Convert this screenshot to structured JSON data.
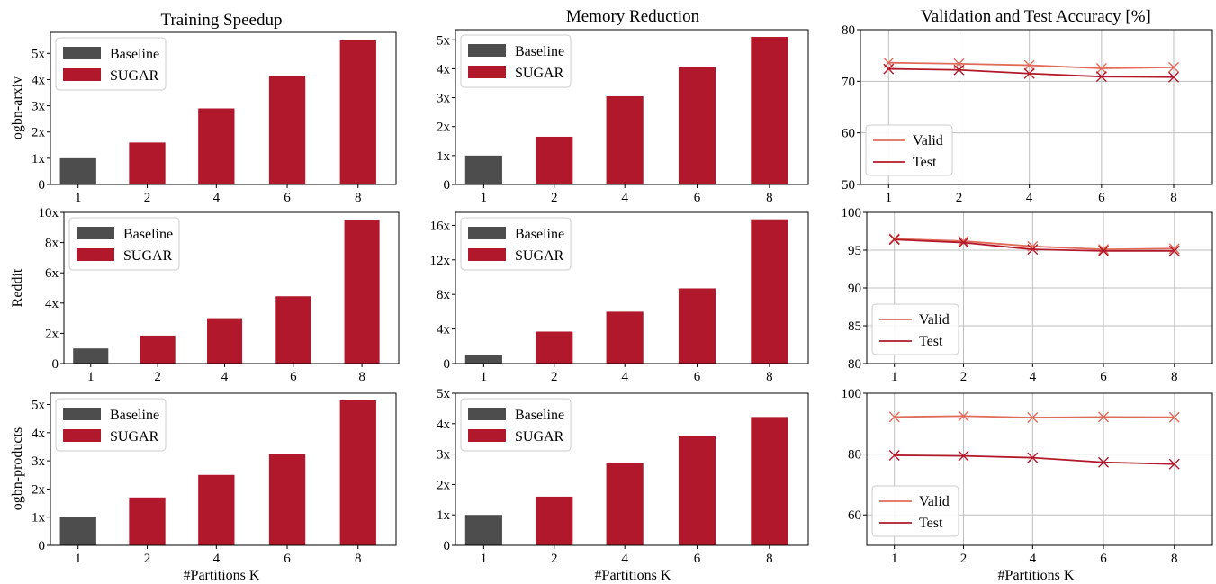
{
  "figure": {
    "column_titles": [
      "Training Speedup",
      "Memory Reduction",
      "Validation and Test Accuracy [%]"
    ],
    "row_labels": [
      "ogbn-arxiv",
      "Reddit",
      "ogbn-products"
    ],
    "xlabel": "#Partitions K",
    "colors": {
      "baseline": "#4d4d4d",
      "sugar": "#b2182b",
      "valid": "#e06b5a",
      "test": "#b2182b",
      "grid": "#bfbfbf"
    }
  },
  "chart_data": [
    {
      "id": "speedup-arxiv",
      "type": "bar",
      "categories": [
        "1",
        "2",
        "4",
        "6",
        "8"
      ],
      "series": [
        {
          "name": "Baseline",
          "values": [
            1.0,
            null,
            null,
            null,
            null
          ]
        },
        {
          "name": "SUGAR",
          "values": [
            null,
            1.6,
            2.9,
            4.15,
            5.5
          ]
        }
      ],
      "ylim": [
        0,
        5.8
      ],
      "yticks": [
        0,
        1,
        2,
        3,
        4,
        5
      ],
      "yticklabels": [
        "0",
        "1x",
        "2x",
        "3x",
        "4x",
        "5x"
      ],
      "legend": "top-left"
    },
    {
      "id": "memory-arxiv",
      "type": "bar",
      "categories": [
        "1",
        "2",
        "4",
        "6",
        "8"
      ],
      "series": [
        {
          "name": "Baseline",
          "values": [
            1.0,
            null,
            null,
            null,
            null
          ]
        },
        {
          "name": "SUGAR",
          "values": [
            null,
            1.65,
            3.05,
            4.05,
            5.1
          ]
        }
      ],
      "ylim": [
        0,
        5.35
      ],
      "yticks": [
        0,
        1,
        2,
        3,
        4,
        5
      ],
      "yticklabels": [
        "0",
        "1x",
        "2x",
        "3x",
        "4x",
        "5x"
      ],
      "legend": "top-left"
    },
    {
      "id": "accuracy-arxiv",
      "type": "line",
      "x": [
        "1",
        "2",
        "4",
        "6",
        "8"
      ],
      "series": [
        {
          "name": "Valid",
          "values": [
            73.6,
            73.4,
            73.1,
            72.5,
            72.7
          ]
        },
        {
          "name": "Test",
          "values": [
            72.4,
            72.2,
            71.5,
            70.9,
            70.8
          ]
        }
      ],
      "ylim": [
        50,
        80
      ],
      "yticks": [
        50,
        60,
        70,
        80
      ],
      "yticklabels": [
        "50",
        "60",
        "70",
        "80"
      ],
      "grid": true,
      "legend": "lower-left"
    },
    {
      "id": "speedup-reddit",
      "type": "bar",
      "categories": [
        "1",
        "2",
        "4",
        "6",
        "8"
      ],
      "series": [
        {
          "name": "Baseline",
          "values": [
            1.0,
            null,
            null,
            null,
            null
          ]
        },
        {
          "name": "SUGAR",
          "values": [
            null,
            1.85,
            3.0,
            4.45,
            9.5
          ]
        }
      ],
      "ylim": [
        0,
        10
      ],
      "yticks": [
        0,
        2,
        4,
        6,
        8,
        10
      ],
      "yticklabels": [
        "0",
        "2x",
        "4x",
        "6x",
        "8x",
        "10x"
      ],
      "legend": "top-left"
    },
    {
      "id": "memory-reddit",
      "type": "bar",
      "categories": [
        "1",
        "2",
        "4",
        "6",
        "8"
      ],
      "series": [
        {
          "name": "Baseline",
          "values": [
            1.0,
            null,
            null,
            null,
            null
          ]
        },
        {
          "name": "SUGAR",
          "values": [
            null,
            3.7,
            6.0,
            8.7,
            16.7
          ]
        }
      ],
      "ylim": [
        0,
        17.5
      ],
      "yticks": [
        0,
        4,
        8,
        12,
        16
      ],
      "yticklabels": [
        "0",
        "4x",
        "8x",
        "12x",
        "16x"
      ],
      "legend": "top-left"
    },
    {
      "id": "accuracy-reddit",
      "type": "line",
      "x": [
        "1",
        "2",
        "4",
        "6",
        "8"
      ],
      "series": [
        {
          "name": "Valid",
          "values": [
            96.5,
            96.2,
            95.5,
            95.1,
            95.2
          ]
        },
        {
          "name": "Test",
          "values": [
            96.4,
            96.0,
            95.1,
            94.9,
            94.9
          ]
        }
      ],
      "ylim": [
        80,
        100
      ],
      "yticks": [
        80,
        85,
        90,
        95,
        100
      ],
      "yticklabels": [
        "80",
        "85",
        "90",
        "95",
        "100"
      ],
      "grid": true,
      "legend": "lower-left"
    },
    {
      "id": "speedup-products",
      "type": "bar",
      "categories": [
        "1",
        "2",
        "4",
        "6",
        "8"
      ],
      "series": [
        {
          "name": "Baseline",
          "values": [
            1.0,
            null,
            null,
            null,
            null
          ]
        },
        {
          "name": "SUGAR",
          "values": [
            null,
            1.7,
            2.5,
            3.25,
            5.15
          ]
        }
      ],
      "ylim": [
        0,
        5.4
      ],
      "yticks": [
        0,
        1,
        2,
        3,
        4,
        5
      ],
      "yticklabels": [
        "0",
        "1x",
        "2x",
        "3x",
        "4x",
        "5x"
      ],
      "legend": "top-left"
    },
    {
      "id": "memory-products",
      "type": "bar",
      "categories": [
        "1",
        "2",
        "4",
        "6",
        "8"
      ],
      "series": [
        {
          "name": "Baseline",
          "values": [
            1.0,
            null,
            null,
            null,
            null
          ]
        },
        {
          "name": "SUGAR",
          "values": [
            null,
            1.6,
            2.7,
            3.58,
            4.22
          ]
        }
      ],
      "ylim": [
        0,
        5
      ],
      "yticks": [
        0,
        1,
        2,
        3,
        4,
        5
      ],
      "yticklabels": [
        "0",
        "1x",
        "2x",
        "3x",
        "4x",
        "5x"
      ],
      "legend": "top-left"
    },
    {
      "id": "accuracy-products",
      "type": "line",
      "x": [
        "1",
        "2",
        "4",
        "6",
        "8"
      ],
      "series": [
        {
          "name": "Valid",
          "values": [
            92.2,
            92.5,
            92.0,
            92.2,
            92.1
          ]
        },
        {
          "name": "Test",
          "values": [
            79.6,
            79.4,
            78.8,
            77.3,
            76.7
          ]
        }
      ],
      "ylim": [
        50,
        100
      ],
      "yticks": [
        60,
        80,
        100
      ],
      "yticklabels": [
        "60",
        "80",
        "100"
      ],
      "grid": true,
      "legend": "lower-left"
    }
  ]
}
